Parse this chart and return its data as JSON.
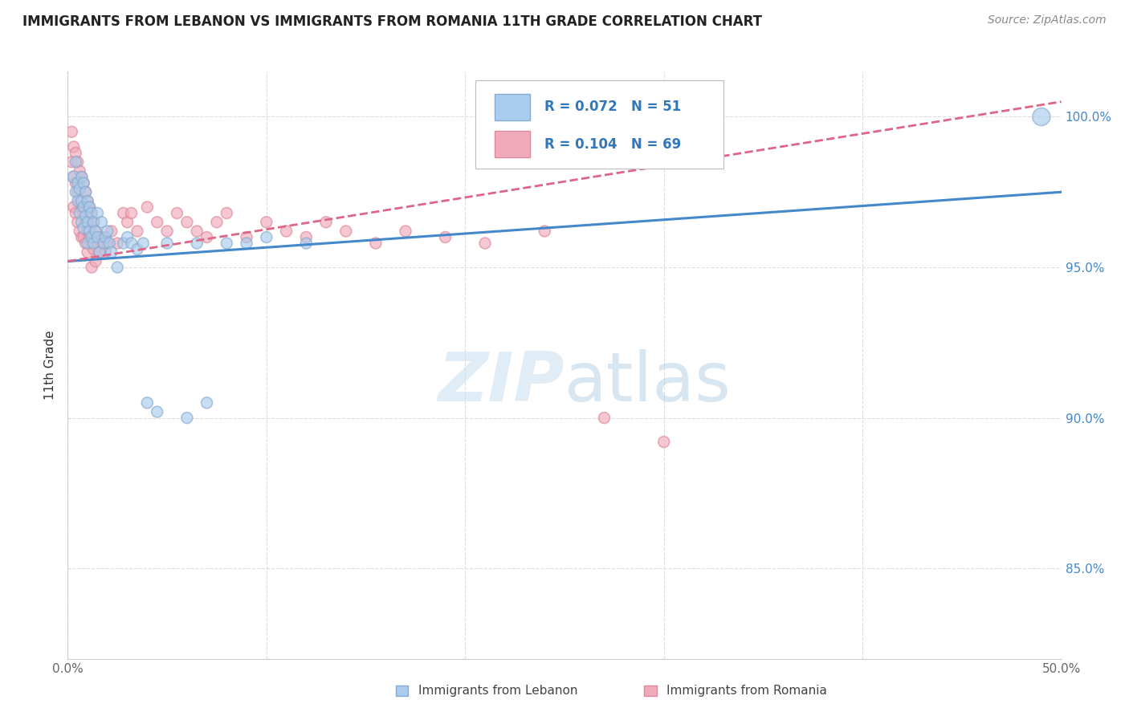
{
  "title": "IMMIGRANTS FROM LEBANON VS IMMIGRANTS FROM ROMANIA 11TH GRADE CORRELATION CHART",
  "source": "Source: ZipAtlas.com",
  "ylabel": "11th Grade",
  "xlim": [
    0.0,
    0.5
  ],
  "ylim": [
    0.82,
    1.015
  ],
  "xtick_vals": [
    0.0,
    0.1,
    0.2,
    0.3,
    0.4,
    0.5
  ],
  "xticklabels": [
    "0.0%",
    "",
    "",
    "",
    "",
    "50.0%"
  ],
  "ytick_vals": [
    0.85,
    0.9,
    0.95,
    1.0
  ],
  "yticklabels": [
    "85.0%",
    "90.0%",
    "95.0%",
    "100.0%"
  ],
  "color_lebanon": "#aaccee",
  "color_romania": "#f0aabb",
  "edge_lebanon": "#88aacc",
  "edge_romania": "#dd8899",
  "trendline_blue": "#4488cc",
  "trendline_pink": "#dd6688",
  "watermark_color": "#cce4f5",
  "legend_text_color": "#3377bb",
  "title_color": "#222222",
  "source_color": "#888888",
  "tick_color_y": "#4488cc",
  "tick_color_x": "#666666",
  "grid_color": "#dddddd",
  "lebanon_x": [
    0.003,
    0.004,
    0.004,
    0.005,
    0.005,
    0.006,
    0.006,
    0.007,
    0.007,
    0.007,
    0.008,
    0.008,
    0.008,
    0.009,
    0.009,
    0.01,
    0.01,
    0.01,
    0.011,
    0.011,
    0.012,
    0.012,
    0.013,
    0.013,
    0.014,
    0.015,
    0.015,
    0.016,
    0.017,
    0.018,
    0.019,
    0.02,
    0.021,
    0.022,
    0.025,
    0.028,
    0.03,
    0.032,
    0.035,
    0.038,
    0.04,
    0.045,
    0.05,
    0.06,
    0.065,
    0.07,
    0.08,
    0.09,
    0.1,
    0.12,
    0.49
  ],
  "lebanon_y": [
    0.98,
    0.985,
    0.975,
    0.978,
    0.972,
    0.976,
    0.968,
    0.98,
    0.972,
    0.965,
    0.978,
    0.97,
    0.963,
    0.975,
    0.967,
    0.972,
    0.965,
    0.958,
    0.97,
    0.962,
    0.968,
    0.96,
    0.965,
    0.958,
    0.962,
    0.968,
    0.96,
    0.955,
    0.965,
    0.958,
    0.96,
    0.962,
    0.958,
    0.955,
    0.95,
    0.958,
    0.96,
    0.958,
    0.956,
    0.958,
    0.905,
    0.902,
    0.958,
    0.9,
    0.958,
    0.905,
    0.958,
    0.958,
    0.96,
    0.958,
    1.0
  ],
  "lebanon_sizes": [
    120,
    100,
    100,
    100,
    100,
    100,
    100,
    100,
    100,
    100,
    100,
    100,
    100,
    100,
    100,
    100,
    100,
    100,
    100,
    100,
    100,
    100,
    100,
    100,
    100,
    100,
    100,
    100,
    100,
    100,
    100,
    100,
    100,
    100,
    100,
    100,
    100,
    100,
    100,
    100,
    100,
    100,
    100,
    100,
    100,
    100,
    100,
    100,
    100,
    100,
    250
  ],
  "romania_x": [
    0.002,
    0.002,
    0.003,
    0.003,
    0.003,
    0.004,
    0.004,
    0.004,
    0.005,
    0.005,
    0.005,
    0.006,
    0.006,
    0.006,
    0.007,
    0.007,
    0.007,
    0.008,
    0.008,
    0.008,
    0.009,
    0.009,
    0.009,
    0.01,
    0.01,
    0.01,
    0.011,
    0.011,
    0.012,
    0.012,
    0.012,
    0.013,
    0.013,
    0.014,
    0.014,
    0.015,
    0.016,
    0.017,
    0.018,
    0.019,
    0.02,
    0.022,
    0.025,
    0.028,
    0.03,
    0.032,
    0.035,
    0.04,
    0.045,
    0.05,
    0.055,
    0.06,
    0.065,
    0.07,
    0.075,
    0.08,
    0.09,
    0.1,
    0.11,
    0.12,
    0.13,
    0.14,
    0.155,
    0.17,
    0.19,
    0.21,
    0.24,
    0.27,
    0.3
  ],
  "romania_y": [
    0.995,
    0.985,
    0.99,
    0.98,
    0.97,
    0.988,
    0.978,
    0.968,
    0.985,
    0.975,
    0.965,
    0.982,
    0.972,
    0.962,
    0.98,
    0.97,
    0.96,
    0.978,
    0.968,
    0.96,
    0.975,
    0.965,
    0.958,
    0.972,
    0.962,
    0.955,
    0.97,
    0.96,
    0.968,
    0.958,
    0.95,
    0.965,
    0.956,
    0.962,
    0.952,
    0.958,
    0.955,
    0.96,
    0.958,
    0.955,
    0.958,
    0.962,
    0.958,
    0.968,
    0.965,
    0.968,
    0.962,
    0.97,
    0.965,
    0.962,
    0.968,
    0.965,
    0.962,
    0.96,
    0.965,
    0.968,
    0.96,
    0.965,
    0.962,
    0.96,
    0.965,
    0.962,
    0.958,
    0.962,
    0.96,
    0.958,
    0.962,
    0.9,
    0.892
  ],
  "romania_sizes": [
    100,
    100,
    100,
    100,
    100,
    100,
    100,
    100,
    100,
    100,
    100,
    100,
    100,
    100,
    100,
    100,
    100,
    100,
    100,
    100,
    100,
    100,
    100,
    100,
    100,
    100,
    100,
    100,
    100,
    100,
    100,
    100,
    100,
    100,
    100,
    100,
    100,
    100,
    100,
    100,
    100,
    100,
    100,
    100,
    100,
    100,
    100,
    100,
    100,
    100,
    100,
    100,
    100,
    100,
    100,
    100,
    100,
    100,
    100,
    100,
    100,
    100,
    100,
    100,
    100,
    100,
    100,
    100,
    100
  ],
  "trendline_leb_x0": 0.0,
  "trendline_leb_y0": 0.952,
  "trendline_leb_x1": 0.5,
  "trendline_leb_y1": 0.975,
  "trendline_rom_x0": 0.0,
  "trendline_rom_y0": 0.952,
  "trendline_rom_x1": 0.5,
  "trendline_rom_y1": 1.005
}
